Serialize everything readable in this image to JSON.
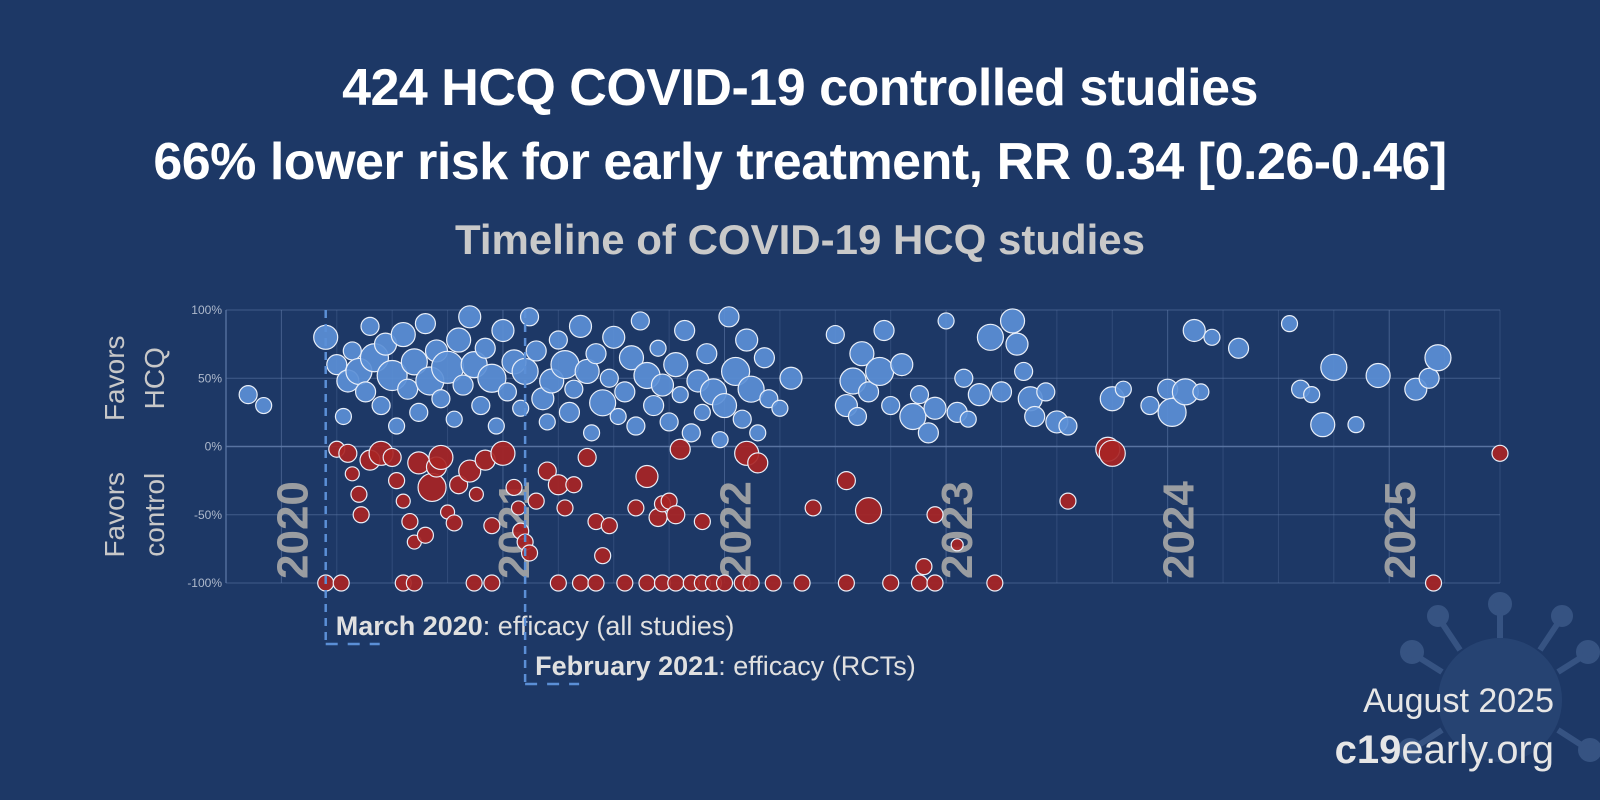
{
  "headline": {
    "line1": "424 HCQ COVID-19 controlled studies",
    "line2": "66% lower risk for early treatment, RR 0.34 [0.26-0.46]"
  },
  "footer": {
    "date": "August 2025",
    "site_bold": "c19",
    "site_rest": "early.org"
  },
  "annotations": [
    {
      "bold": "March 2020",
      "rest": ": efficacy (all studies)",
      "date": 2020.2
    },
    {
      "bold": "February 2021",
      "rest": ": efficacy (RCTs)",
      "date": 2021.1
    }
  ],
  "decor": {
    "virus_icon": "virus-icon"
  },
  "colors": {
    "background": "#1d3866",
    "favors_hcq": "#5b8fd6",
    "favors_control": "#a82424",
    "gridline": "#5f7aa8",
    "annotation_line": "#5b8fd6"
  },
  "chart_data": {
    "type": "scatter",
    "title": "Timeline of COVID-19 HCQ studies",
    "ylabel_top": [
      "Favors",
      "HCQ"
    ],
    "ylabel_bottom": [
      "Favors",
      "control"
    ],
    "ylim": [
      -100,
      100
    ],
    "xlim": [
      2019.75,
      2025.5
    ],
    "yticks": [
      {
        "v": 100,
        "label": "100%"
      },
      {
        "v": 50,
        "label": "50%"
      },
      {
        "v": 0,
        "label": "0%"
      },
      {
        "v": -50,
        "label": "-50%"
      },
      {
        "v": -100,
        "label": "-100%"
      }
    ],
    "year_labels": [
      {
        "t": 2020.0,
        "label": "2020"
      },
      {
        "t": 2021.0,
        "label": "2021"
      },
      {
        "t": 2022.0,
        "label": "2022"
      },
      {
        "t": 2023.0,
        "label": "2023"
      },
      {
        "t": 2024.0,
        "label": "2024"
      },
      {
        "t": 2025.0,
        "label": "2025"
      }
    ],
    "grid": true,
    "marker_size_encodes": "study size",
    "series": [
      {
        "key": "favors_hcq",
        "points": [
          [
            2019.85,
            38,
            9
          ],
          [
            2019.92,
            30,
            8
          ],
          [
            2020.2,
            80,
            12
          ],
          [
            2020.25,
            60,
            10
          ],
          [
            2020.3,
            48,
            11
          ],
          [
            2020.32,
            70,
            9
          ],
          [
            2020.28,
            22,
            8
          ],
          [
            2020.35,
            55,
            13
          ],
          [
            2020.38,
            40,
            10
          ],
          [
            2020.4,
            88,
            9
          ],
          [
            2020.42,
            65,
            14
          ],
          [
            2020.45,
            30,
            9
          ],
          [
            2020.47,
            75,
            11
          ],
          [
            2020.5,
            52,
            15
          ],
          [
            2020.52,
            15,
            8
          ],
          [
            2020.55,
            82,
            12
          ],
          [
            2020.57,
            42,
            10
          ],
          [
            2020.6,
            62,
            13
          ],
          [
            2020.62,
            25,
            9
          ],
          [
            2020.65,
            90,
            10
          ],
          [
            2020.67,
            48,
            14
          ],
          [
            2020.7,
            70,
            11
          ],
          [
            2020.72,
            35,
            9
          ],
          [
            2020.75,
            58,
            16
          ],
          [
            2020.78,
            20,
            8
          ],
          [
            2020.8,
            78,
            12
          ],
          [
            2020.82,
            45,
            10
          ],
          [
            2020.85,
            95,
            11
          ],
          [
            2020.87,
            60,
            13
          ],
          [
            2020.9,
            30,
            9
          ],
          [
            2020.92,
            72,
            10
          ],
          [
            2020.95,
            50,
            14
          ],
          [
            2020.97,
            15,
            8
          ],
          [
            2021.0,
            85,
            11
          ],
          [
            2021.02,
            40,
            9
          ],
          [
            2021.05,
            62,
            12
          ],
          [
            2021.08,
            28,
            8
          ],
          [
            2021.1,
            55,
            13
          ],
          [
            2021.12,
            95,
            9
          ],
          [
            2021.15,
            70,
            10
          ],
          [
            2021.18,
            35,
            11
          ],
          [
            2021.2,
            18,
            8
          ],
          [
            2021.22,
            48,
            12
          ],
          [
            2021.25,
            78,
            9
          ],
          [
            2021.28,
            60,
            14
          ],
          [
            2021.3,
            25,
            10
          ],
          [
            2021.32,
            42,
            9
          ],
          [
            2021.35,
            88,
            11
          ],
          [
            2021.38,
            55,
            12
          ],
          [
            2021.4,
            10,
            8
          ],
          [
            2021.42,
            68,
            10
          ],
          [
            2021.45,
            32,
            13
          ],
          [
            2021.48,
            50,
            9
          ],
          [
            2021.5,
            80,
            11
          ],
          [
            2021.52,
            22,
            8
          ],
          [
            2021.55,
            40,
            10
          ],
          [
            2021.58,
            65,
            12
          ],
          [
            2021.6,
            15,
            9
          ],
          [
            2021.62,
            92,
            9
          ],
          [
            2021.65,
            52,
            13
          ],
          [
            2021.68,
            30,
            10
          ],
          [
            2021.7,
            72,
            8
          ],
          [
            2021.72,
            45,
            11
          ],
          [
            2021.75,
            18,
            9
          ],
          [
            2021.78,
            60,
            12
          ],
          [
            2021.8,
            38,
            8
          ],
          [
            2021.82,
            85,
            10
          ],
          [
            2021.85,
            10,
            9
          ],
          [
            2021.88,
            48,
            11
          ],
          [
            2021.9,
            25,
            8
          ],
          [
            2021.92,
            68,
            10
          ],
          [
            2021.95,
            40,
            13
          ],
          [
            2021.98,
            5,
            8
          ],
          [
            2022.0,
            30,
            12
          ],
          [
            2022.02,
            95,
            10
          ],
          [
            2022.05,
            55,
            14
          ],
          [
            2022.08,
            20,
            9
          ],
          [
            2022.1,
            78,
            11
          ],
          [
            2022.12,
            42,
            13
          ],
          [
            2022.15,
            10,
            8
          ],
          [
            2022.18,
            65,
            10
          ],
          [
            2022.2,
            35,
            9
          ],
          [
            2022.25,
            28,
            8
          ],
          [
            2022.3,
            50,
            11
          ],
          [
            2022.5,
            82,
            9
          ],
          [
            2022.55,
            30,
            11
          ],
          [
            2022.58,
            48,
            13
          ],
          [
            2022.6,
            22,
            9
          ],
          [
            2022.62,
            68,
            12
          ],
          [
            2022.65,
            40,
            10
          ],
          [
            2022.7,
            55,
            14
          ],
          [
            2022.72,
            85,
            10
          ],
          [
            2022.75,
            30,
            9
          ],
          [
            2022.8,
            60,
            11
          ],
          [
            2022.85,
            22,
            13
          ],
          [
            2022.88,
            38,
            9
          ],
          [
            2022.92,
            10,
            10
          ],
          [
            2022.95,
            28,
            11
          ],
          [
            2023.0,
            92,
            8
          ],
          [
            2023.05,
            25,
            10
          ],
          [
            2023.08,
            50,
            9
          ],
          [
            2023.1,
            20,
            8
          ],
          [
            2023.15,
            38,
            11
          ],
          [
            2023.2,
            80,
            13
          ],
          [
            2023.25,
            40,
            10
          ],
          [
            2023.3,
            92,
            12
          ],
          [
            2023.32,
            75,
            11
          ],
          [
            2023.35,
            55,
            9
          ],
          [
            2023.38,
            35,
            12
          ],
          [
            2023.4,
            22,
            10
          ],
          [
            2023.45,
            40,
            9
          ],
          [
            2023.5,
            18,
            11
          ],
          [
            2023.55,
            15,
            9
          ],
          [
            2023.75,
            35,
            12
          ],
          [
            2023.8,
            42,
            8
          ],
          [
            2023.92,
            30,
            9
          ],
          [
            2024.0,
            42,
            10
          ],
          [
            2024.02,
            25,
            14
          ],
          [
            2024.08,
            40,
            13
          ],
          [
            2024.12,
            85,
            11
          ],
          [
            2024.15,
            40,
            8
          ],
          [
            2024.2,
            80,
            8
          ],
          [
            2024.32,
            72,
            10
          ],
          [
            2024.55,
            90,
            8
          ],
          [
            2024.6,
            42,
            9
          ],
          [
            2024.65,
            38,
            8
          ],
          [
            2024.7,
            16,
            12
          ],
          [
            2024.75,
            58,
            13
          ],
          [
            2024.85,
            16,
            8
          ],
          [
            2024.95,
            52,
            12
          ],
          [
            2025.12,
            42,
            11
          ],
          [
            2025.18,
            50,
            10
          ],
          [
            2025.22,
            65,
            13
          ]
        ]
      },
      {
        "key": "favors_control",
        "points": [
          [
            2020.25,
            -2,
            8
          ],
          [
            2020.3,
            -5,
            9
          ],
          [
            2020.32,
            -20,
            7
          ],
          [
            2020.35,
            -35,
            8
          ],
          [
            2020.36,
            -50,
            8
          ],
          [
            2020.4,
            -10,
            10
          ],
          [
            2020.45,
            -5,
            12
          ],
          [
            2020.5,
            -8,
            9
          ],
          [
            2020.52,
            -25,
            8
          ],
          [
            2020.55,
            -40,
            7
          ],
          [
            2020.58,
            -55,
            8
          ],
          [
            2020.6,
            -70,
            7
          ],
          [
            2020.62,
            -12,
            11
          ],
          [
            2020.65,
            -65,
            8
          ],
          [
            2020.68,
            -30,
            14
          ],
          [
            2020.7,
            -15,
            10
          ],
          [
            2020.72,
            -8,
            12
          ],
          [
            2020.75,
            -48,
            7
          ],
          [
            2020.78,
            -56,
            8
          ],
          [
            2020.8,
            -28,
            9
          ],
          [
            2020.85,
            -18,
            11
          ],
          [
            2020.88,
            -35,
            7
          ],
          [
            2020.92,
            -10,
            10
          ],
          [
            2020.95,
            -58,
            8
          ],
          [
            2021.0,
            -5,
            12
          ],
          [
            2021.05,
            -30,
            8
          ],
          [
            2021.07,
            -45,
            7
          ],
          [
            2021.08,
            -62,
            8
          ],
          [
            2021.1,
            -70,
            8
          ],
          [
            2021.12,
            -78,
            8
          ],
          [
            2021.15,
            -40,
            8
          ],
          [
            2021.2,
            -18,
            9
          ],
          [
            2021.25,
            -28,
            10
          ],
          [
            2021.28,
            -45,
            8
          ],
          [
            2021.32,
            -28,
            8
          ],
          [
            2021.38,
            -8,
            9
          ],
          [
            2021.42,
            -55,
            8
          ],
          [
            2021.45,
            -80,
            8
          ],
          [
            2021.48,
            -58,
            8
          ],
          [
            2021.6,
            -45,
            8
          ],
          [
            2021.65,
            -22,
            11
          ],
          [
            2021.7,
            -52,
            9
          ],
          [
            2021.72,
            -42,
            8
          ],
          [
            2021.75,
            -40,
            8
          ],
          [
            2021.78,
            -50,
            9
          ],
          [
            2021.8,
            -2,
            10
          ],
          [
            2021.9,
            -55,
            8
          ],
          [
            2022.1,
            -5,
            12
          ],
          [
            2022.15,
            -12,
            10
          ],
          [
            2022.4,
            -45,
            8
          ],
          [
            2022.55,
            -25,
            9
          ],
          [
            2022.65,
            -47,
            13
          ],
          [
            2022.9,
            -88,
            8
          ],
          [
            2022.95,
            -50,
            8
          ],
          [
            2023.05,
            -72,
            6
          ],
          [
            2023.55,
            -40,
            8
          ],
          [
            2023.73,
            -2,
            12
          ],
          [
            2023.75,
            -5,
            13
          ],
          [
            2025.2,
            -100,
            8
          ],
          [
            2025.5,
            -5,
            8
          ],
          [
            2020.2,
            -100,
            8
          ],
          [
            2020.27,
            -100,
            8
          ],
          [
            2020.55,
            -100,
            8
          ],
          [
            2020.6,
            -100,
            8
          ],
          [
            2020.87,
            -100,
            8
          ],
          [
            2020.95,
            -100,
            8
          ],
          [
            2021.25,
            -100,
            8
          ],
          [
            2021.35,
            -100,
            8
          ],
          [
            2021.42,
            -100,
            8
          ],
          [
            2021.55,
            -100,
            8
          ],
          [
            2021.65,
            -100,
            8
          ],
          [
            2021.72,
            -100,
            8
          ],
          [
            2021.78,
            -100,
            8
          ],
          [
            2021.85,
            -100,
            8
          ],
          [
            2021.9,
            -100,
            8
          ],
          [
            2021.95,
            -100,
            8
          ],
          [
            2022.0,
            -100,
            8
          ],
          [
            2022.08,
            -100,
            8
          ],
          [
            2022.12,
            -100,
            8
          ],
          [
            2022.22,
            -100,
            8
          ],
          [
            2022.35,
            -100,
            8
          ],
          [
            2022.55,
            -100,
            8
          ],
          [
            2022.75,
            -100,
            8
          ],
          [
            2022.88,
            -100,
            8
          ],
          [
            2022.95,
            -100,
            8
          ],
          [
            2023.22,
            -100,
            8
          ]
        ]
      }
    ]
  }
}
